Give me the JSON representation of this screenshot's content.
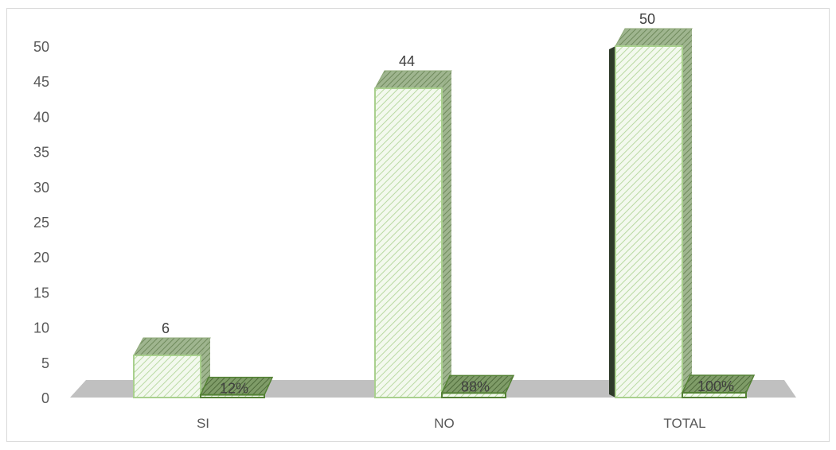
{
  "chart_data": {
    "type": "bar",
    "categories": [
      "SI",
      "NO",
      "TOTAL"
    ],
    "series": [
      {
        "values": [
          6,
          44,
          50
        ],
        "labels": [
          "6",
          "44",
          "50"
        ]
      },
      {
        "values": [
          0.12,
          0.88,
          1.0
        ],
        "labels": [
          "12%",
          "88%",
          "100%"
        ]
      }
    ],
    "ylim": [
      0,
      50
    ],
    "yticks": [
      0,
      5,
      10,
      15,
      20,
      25,
      30,
      35,
      40,
      45,
      50
    ],
    "grid": false,
    "legend": "none",
    "colors": {
      "bar_fill": "#eef7e6",
      "bar_stroke": "#a9d08e",
      "hatch": "#c6e0b4",
      "bar_top": "#8faa7a",
      "small_bar_front": "#548235",
      "floor": "#c0c0c0",
      "dark_side": "#2f3b2a"
    }
  }
}
